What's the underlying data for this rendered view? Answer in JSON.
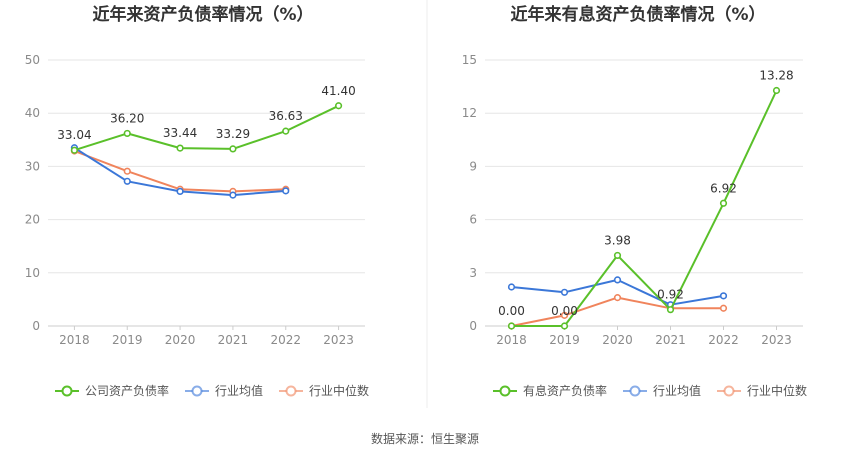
{
  "source": "数据来源：恒生聚源",
  "chart_data": [
    {
      "type": "line",
      "title": "近年来资产负债率情况（%）",
      "categories": [
        "2018",
        "2019",
        "2020",
        "2021",
        "2022",
        "2023"
      ],
      "ylim": [
        0,
        50
      ],
      "yticks": [
        "0",
        "10",
        "20",
        "30",
        "40",
        "50"
      ],
      "grid": true,
      "legend_position": "bottom",
      "series": [
        {
          "name": "公司资产负债率",
          "color": "#5ac02a",
          "labeled": true,
          "values": [
            33.04,
            36.2,
            33.44,
            33.29,
            36.63,
            41.4
          ],
          "labels": [
            "33.04",
            "36.20",
            "33.44",
            "33.29",
            "36.63",
            "41.40"
          ]
        },
        {
          "name": "行业均值",
          "color": "#3b77d8",
          "labeled": false,
          "values": [
            33.5,
            27.2,
            25.3,
            24.6,
            25.4,
            null
          ]
        },
        {
          "name": "行业中位数",
          "color": "#f0845c",
          "labeled": false,
          "values": [
            32.9,
            29.1,
            25.7,
            25.3,
            25.7,
            null
          ]
        }
      ]
    },
    {
      "type": "line",
      "title": "近年来有息资产负债率情况（%）",
      "categories": [
        "2018",
        "2019",
        "2020",
        "2021",
        "2022",
        "2023"
      ],
      "ylim": [
        0,
        15
      ],
      "yticks": [
        "0",
        "3",
        "6",
        "9",
        "12",
        "15"
      ],
      "grid": true,
      "legend_position": "bottom",
      "series": [
        {
          "name": "有息资产负债率",
          "color": "#5ac02a",
          "labeled": true,
          "values": [
            0.0,
            0.0,
            3.98,
            0.92,
            6.92,
            13.28
          ],
          "labels": [
            "0.00",
            "0.00",
            "3.98",
            "0.92",
            "6.92",
            "13.28"
          ]
        },
        {
          "name": "行业均值",
          "color": "#3b77d8",
          "labeled": false,
          "values": [
            2.2,
            1.9,
            2.6,
            1.2,
            1.7,
            null
          ]
        },
        {
          "name": "行业中位数",
          "color": "#f0845c",
          "labeled": false,
          "values": [
            0.0,
            0.6,
            1.6,
            1.0,
            1.0,
            null
          ]
        }
      ]
    }
  ]
}
